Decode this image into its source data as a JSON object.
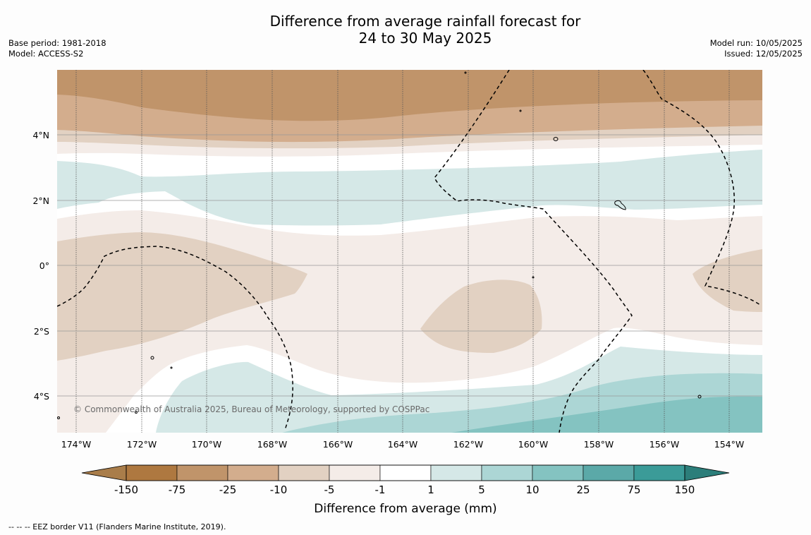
{
  "title": {
    "line1": "Difference from average rainfall forecast for",
    "line2": "24 to 30 May 2025"
  },
  "meta_left": {
    "base_period": "Base period: 1981-2018",
    "model": "Model: ACCESS-S2"
  },
  "meta_right": {
    "model_run": "Model run: 10/05/2025",
    "issued": "Issued: 12/05/2025"
  },
  "map": {
    "lon_labels": [
      "174°W",
      "172°W",
      "170°W",
      "168°W",
      "166°W",
      "164°W",
      "162°W",
      "160°W",
      "158°W",
      "156°W",
      "154°W"
    ],
    "lat_labels": [
      "4°N",
      "2°N",
      "0°",
      "2°S",
      "4°S"
    ],
    "copyright": "© Commonwealth of Australia 2025, Bureau of Meteorology, supported by COSPPac",
    "features": [
      "land-outline",
      "eez-border"
    ]
  },
  "colorbar": {
    "ticks": [
      "-150",
      "-75",
      "-25",
      "-10",
      "-5",
      "-1",
      "1",
      "5",
      "10",
      "25",
      "75",
      "150"
    ],
    "colors": [
      "#a97d4a",
      "#ae7840",
      "#c0946a",
      "#d3ad8d",
      "#e2d1c2",
      "#f4ece8",
      "#ffffff",
      "#d5e8e7",
      "#acd6d5",
      "#84c3c1",
      "#5ba9a8",
      "#3b9b98",
      "#2c7e7a"
    ],
    "label": "Difference from average (mm)"
  },
  "footer": "--  --  -- EEZ border V11 (Flanders Marine Institute, 2019)."
}
